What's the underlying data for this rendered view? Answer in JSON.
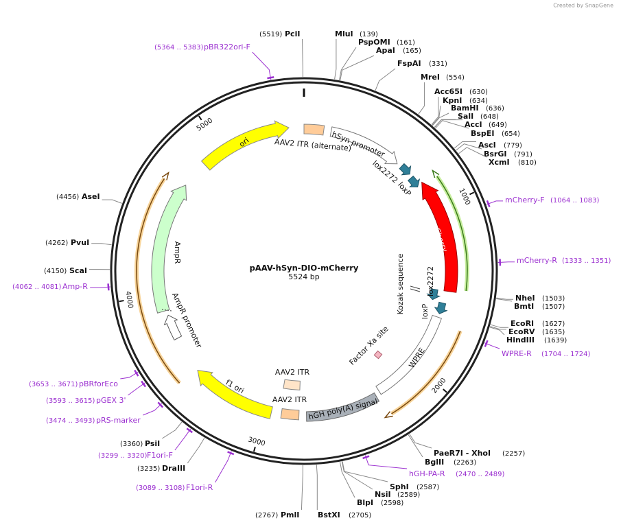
{
  "watermark": "Created by SnapGene",
  "plasmid": {
    "name": "pAAV-hSyn-DIO-mCherry",
    "size": "5524 bp"
  },
  "ticks": [
    1000,
    2000,
    3000,
    4000,
    5000
  ],
  "enzymes": [
    {
      "name": "PciI",
      "site": "(5519)"
    },
    {
      "name": "MluI",
      "site": "(139)"
    },
    {
      "name": "PspOMI",
      "site": "(161)"
    },
    {
      "name": "ApaI",
      "site": "(165)"
    },
    {
      "name": "FspAI",
      "site": "(331)"
    },
    {
      "name": "MreI",
      "site": "(554)"
    },
    {
      "name": "Acc65I",
      "site": "(630)"
    },
    {
      "name": "KpnI",
      "site": "(634)"
    },
    {
      "name": "BamHI",
      "site": "(636)"
    },
    {
      "name": "SalI",
      "site": "(648)"
    },
    {
      "name": "AccI",
      "site": "(649)"
    },
    {
      "name": "BspEI",
      "site": "(654)"
    },
    {
      "name": "AscI",
      "site": "(779)"
    },
    {
      "name": "BsrGI",
      "site": "(791)"
    },
    {
      "name": "XcmI",
      "site": "(810)"
    },
    {
      "name": "NheI",
      "site": "(1503)"
    },
    {
      "name": "BmtI",
      "site": "(1507)"
    },
    {
      "name": "EcoRI",
      "site": "(1627)"
    },
    {
      "name": "EcoRV",
      "site": "(1635)"
    },
    {
      "name": "HindIII",
      "site": "(1639)"
    },
    {
      "name": "PaeR7I - XhoI",
      "site": "(2257)"
    },
    {
      "name": "BglII",
      "site": "(2263)"
    },
    {
      "name": "SphI",
      "site": "(2587)"
    },
    {
      "name": "NsiI",
      "site": "(2589)"
    },
    {
      "name": "BlpI",
      "site": "(2598)"
    },
    {
      "name": "BstXI",
      "site": "(2705)"
    },
    {
      "name": "PmlI",
      "site": "(2767)"
    },
    {
      "name": "DraIII",
      "site": "(3235)"
    },
    {
      "name": "PsiI",
      "site": "(3360)"
    },
    {
      "name": "ScaI",
      "site": "(4150)"
    },
    {
      "name": "PvuI",
      "site": "(4262)"
    },
    {
      "name": "AseI",
      "site": "(4456)"
    }
  ],
  "primers": [
    {
      "name": "pBR322ori-F",
      "range": "(5364 .. 5383)"
    },
    {
      "name": "mCherry-F",
      "range": "(1064 .. 1083)"
    },
    {
      "name": "mCherry-R",
      "range": "(1333 .. 1351)"
    },
    {
      "name": "WPRE-R",
      "range": "(1704 .. 1724)"
    },
    {
      "name": "hGH-PA-R",
      "range": "(2470 .. 2489)"
    },
    {
      "name": "F1ori-R",
      "range": "(3089 .. 3108)"
    },
    {
      "name": "F1ori-F",
      "range": "(3299 .. 3320)"
    },
    {
      "name": "pRS-marker",
      "range": "(3474 .. 3493)"
    },
    {
      "name": "pGEX 3'",
      "range": "(3593 .. 3615)"
    },
    {
      "name": "pBRforEco",
      "range": "(3653 .. 3671)"
    },
    {
      "name": "Amp-R",
      "range": "(4062 .. 4081)"
    }
  ],
  "features": [
    "ori",
    "AAV2 ITR (alternate)",
    "hSyn promoter",
    "lox2272",
    "loxP",
    "mCherry",
    "Kozak sequence",
    "lox2272",
    "loxP",
    "Factor Xa site",
    "WPRE",
    "hGH poly(A) signal",
    "AAV2 ITR",
    "AAV2 ITR",
    "f1 ori",
    "AmpR",
    "AmpR promoter"
  ]
}
